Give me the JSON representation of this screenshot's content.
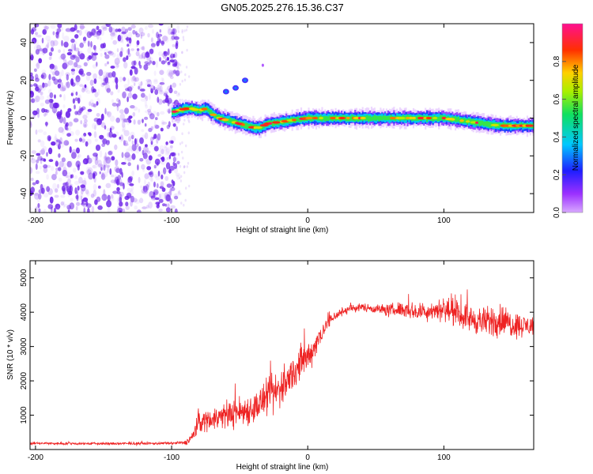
{
  "title": "GN05.2025.276.15.36.C37",
  "colors": {
    "snr_line": "#ee2222",
    "scatter_noise": "#7d3cf0",
    "axis": "#000000"
  },
  "chart_data": [
    {
      "type": "heatmap",
      "name": "spectrogram",
      "title": "GN05.2025.276.15.36.C37",
      "xlabel": "Height of straight line (km)",
      "ylabel": "Frequency (Hz)",
      "xlim": [
        -204,
        166
      ],
      "ylim": [
        -50,
        50
      ],
      "xticks": [
        -200,
        -100,
        0,
        100
      ],
      "yticks": [
        -40,
        -20,
        0,
        20,
        40
      ],
      "colorbar": {
        "label": "Normalized spectral amplitude",
        "range": [
          0.0,
          1.0
        ],
        "ticks": [
          0.0,
          0.2,
          0.4,
          0.6,
          0.8
        ],
        "colormap": "rainbow (magenta-blue-cyan-green-yellow-red)"
      },
      "noise_region_km": [
        -204,
        -95
      ],
      "signal_track": {
        "x": [
          -100,
          -95,
          -90,
          -85,
          -80,
          -75,
          -70,
          -65,
          -60,
          -55,
          -50,
          -45,
          -40,
          -35,
          -30,
          -20,
          -10,
          0,
          10,
          20,
          40,
          60,
          80,
          100,
          120,
          130,
          140,
          150,
          166
        ],
        "freq": [
          3,
          4,
          5,
          5,
          4,
          5,
          2,
          0,
          -1,
          -2,
          -3,
          -4,
          -5,
          -5,
          -3,
          -2,
          -1,
          0,
          0,
          0,
          0,
          0,
          0,
          0,
          -2,
          -3,
          -4,
          -4,
          -4
        ]
      },
      "secondary_blobs": [
        {
          "x": -60,
          "freq": 14
        },
        {
          "x": -53,
          "freq": 16
        },
        {
          "x": -46,
          "freq": 20
        },
        {
          "x": -33,
          "freq": 28
        }
      ]
    },
    {
      "type": "line",
      "name": "snr",
      "xlabel": "Height of straight line (km)",
      "ylabel": "SNR (10 * v/v)",
      "xlim": [
        -204,
        166
      ],
      "ylim": [
        0,
        5500
      ],
      "xticks": [
        -200,
        -100,
        0,
        100
      ],
      "yticks": [
        1000,
        2000,
        3000,
        4000,
        5000
      ],
      "series": [
        {
          "name": "SNR",
          "envelope_x": [
            -204,
            -150,
            -100,
            -90,
            -85,
            -80,
            -70,
            -60,
            -50,
            -40,
            -30,
            -25,
            -20,
            -15,
            -10,
            -5,
            0,
            5,
            10,
            15,
            20,
            30,
            40,
            50,
            60,
            70,
            80,
            90,
            100,
            110,
            120,
            130,
            140,
            150,
            160,
            166
          ],
          "envelope_mean": [
            180,
            170,
            180,
            200,
            350,
            800,
            900,
            1000,
            1100,
            1200,
            1500,
            1600,
            1800,
            2000,
            2300,
            2500,
            2700,
            3000,
            3400,
            3700,
            3900,
            4100,
            4150,
            4100,
            4050,
            4100,
            4000,
            4050,
            4100,
            3950,
            3800,
            3700,
            3800,
            3650,
            3600,
            3600
          ],
          "envelope_spread": [
            60,
            60,
            60,
            80,
            300,
            500,
            500,
            600,
            700,
            700,
            800,
            1000,
            900,
            800,
            800,
            900,
            700,
            600,
            500,
            300,
            250,
            200,
            180,
            200,
            300,
            350,
            400,
            450,
            550,
            550,
            600,
            650,
            800,
            600,
            500,
            500
          ]
        }
      ]
    }
  ]
}
